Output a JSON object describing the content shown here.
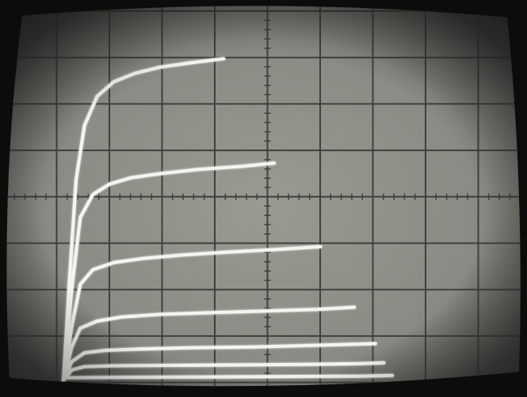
{
  "photo": {
    "subject": "oscilloscope-curve-tracer-display",
    "colors": {
      "bezel": "#0c0c0c",
      "screen_center": "#9a9a92",
      "screen_edge": "#4a4a46",
      "graticule": "#3f3f3c",
      "trace": "#f4f4f0"
    },
    "graticule": {
      "divisions_x": 10,
      "divisions_y": 8,
      "minor_ticks_per_division": 5
    }
  },
  "chart_data": {
    "type": "line",
    "title": "",
    "xlabel": "",
    "ylabel": "",
    "xlim": [
      0,
      10
    ],
    "ylim": [
      0,
      8
    ],
    "grid": true,
    "series": [
      {
        "x": [
          0.0,
          0.15,
          0.3,
          0.5,
          0.8,
          1.2,
          1.7,
          2.3,
          3.0,
          3.8
        ],
        "y": [
          0.0,
          2.5,
          4.8,
          6.1,
          6.8,
          7.15,
          7.35,
          7.5,
          7.6,
          7.7
        ]
      },
      {
        "x": [
          0.0,
          0.2,
          0.4,
          0.7,
          1.1,
          1.6,
          2.3,
          3.2,
          4.2,
          5.0
        ],
        "y": [
          0.0,
          2.2,
          3.9,
          4.45,
          4.7,
          4.85,
          4.95,
          5.05,
          5.12,
          5.2
        ]
      },
      {
        "x": [
          0.0,
          0.2,
          0.4,
          0.7,
          1.2,
          1.9,
          2.8,
          3.9,
          5.0,
          6.1
        ],
        "y": [
          0.0,
          1.3,
          2.3,
          2.65,
          2.82,
          2.92,
          3.0,
          3.07,
          3.13,
          3.2
        ]
      },
      {
        "x": [
          0.0,
          0.2,
          0.4,
          0.8,
          1.4,
          2.3,
          3.5,
          4.8,
          6.0,
          6.9
        ],
        "y": [
          0.0,
          0.8,
          1.25,
          1.42,
          1.52,
          1.58,
          1.62,
          1.66,
          1.7,
          1.75
        ]
      },
      {
        "x": [
          0.0,
          0.2,
          0.5,
          1.0,
          1.8,
          3.0,
          4.5,
          6.0,
          7.4
        ],
        "y": [
          0.0,
          0.45,
          0.66,
          0.72,
          0.75,
          0.78,
          0.8,
          0.84,
          0.88
        ]
      },
      {
        "x": [
          0.0,
          0.2,
          0.5,
          1.2,
          2.5,
          4.0,
          5.5,
          7.0,
          7.6
        ],
        "y": [
          0.0,
          0.25,
          0.33,
          0.35,
          0.36,
          0.37,
          0.38,
          0.4,
          0.42
        ]
      },
      {
        "x": [
          0.0,
          1.0,
          3.0,
          5.0,
          7.0,
          7.8
        ],
        "y": [
          0.06,
          0.07,
          0.08,
          0.09,
          0.1,
          0.12
        ]
      }
    ]
  }
}
